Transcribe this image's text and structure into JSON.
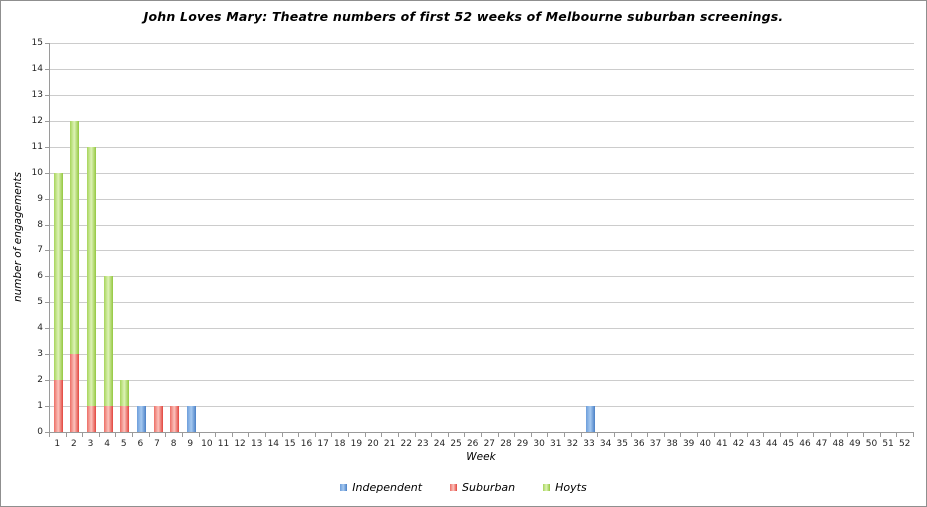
{
  "frame": {
    "background": "#ffffff",
    "border_color": "#8f8f8f",
    "gridline_color": "#cccccc",
    "axis_color": "#9a9a9a"
  },
  "chart_data": {
    "type": "bar",
    "stacked": true,
    "title": "John Loves Mary: Theatre numbers of first 52 weeks of Melbourne suburban screenings.",
    "xlabel": "Week",
    "ylabel": "number of engagements",
    "ylim": [
      0,
      15
    ],
    "y_tick_step": 1,
    "grid": true,
    "legend_position": "bottom",
    "categories": [
      1,
      2,
      3,
      4,
      5,
      6,
      7,
      8,
      9,
      10,
      11,
      12,
      13,
      14,
      15,
      16,
      17,
      18,
      19,
      20,
      21,
      22,
      23,
      24,
      25,
      26,
      27,
      28,
      29,
      30,
      31,
      32,
      33,
      34,
      35,
      36,
      37,
      38,
      39,
      40,
      41,
      42,
      43,
      44,
      45,
      46,
      47,
      48,
      49,
      50,
      51,
      52
    ],
    "series": [
      {
        "name": "Independent",
        "color": "#6d9edb",
        "gradient": [
          "#6d9edb",
          "#a6c9f0",
          "#4a80c6"
        ],
        "values": [
          0,
          0,
          0,
          0,
          0,
          1,
          0,
          0,
          1,
          0,
          0,
          0,
          0,
          0,
          0,
          0,
          0,
          0,
          0,
          0,
          0,
          0,
          0,
          0,
          0,
          0,
          0,
          0,
          0,
          0,
          0,
          0,
          1,
          0,
          0,
          0,
          0,
          0,
          0,
          0,
          0,
          0,
          0,
          0,
          0,
          0,
          0,
          0,
          0,
          0,
          0,
          0
        ]
      },
      {
        "name": "Suburban",
        "color": "#ec6e66",
        "gradient": [
          "#ec6e66",
          "#fbc3bd",
          "#e2453d"
        ],
        "values": [
          2,
          3,
          1,
          1,
          1,
          0,
          1,
          1,
          0,
          0,
          0,
          0,
          0,
          0,
          0,
          0,
          0,
          0,
          0,
          0,
          0,
          0,
          0,
          0,
          0,
          0,
          0,
          0,
          0,
          0,
          0,
          0,
          0,
          0,
          0,
          0,
          0,
          0,
          0,
          0,
          0,
          0,
          0,
          0,
          0,
          0,
          0,
          0,
          0,
          0,
          0,
          0
        ]
      },
      {
        "name": "Hoyts",
        "color": "#a7d55b",
        "gradient": [
          "#a7d55b",
          "#ddf2b5",
          "#93c73f"
        ],
        "values": [
          8,
          9,
          10,
          5,
          1,
          0,
          0,
          0,
          0,
          0,
          0,
          0,
          0,
          0,
          0,
          0,
          0,
          0,
          0,
          0,
          0,
          0,
          0,
          0,
          0,
          0,
          0,
          0,
          0,
          0,
          0,
          0,
          0,
          0,
          0,
          0,
          0,
          0,
          0,
          0,
          0,
          0,
          0,
          0,
          0,
          0,
          0,
          0,
          0,
          0,
          0,
          0
        ]
      }
    ]
  }
}
